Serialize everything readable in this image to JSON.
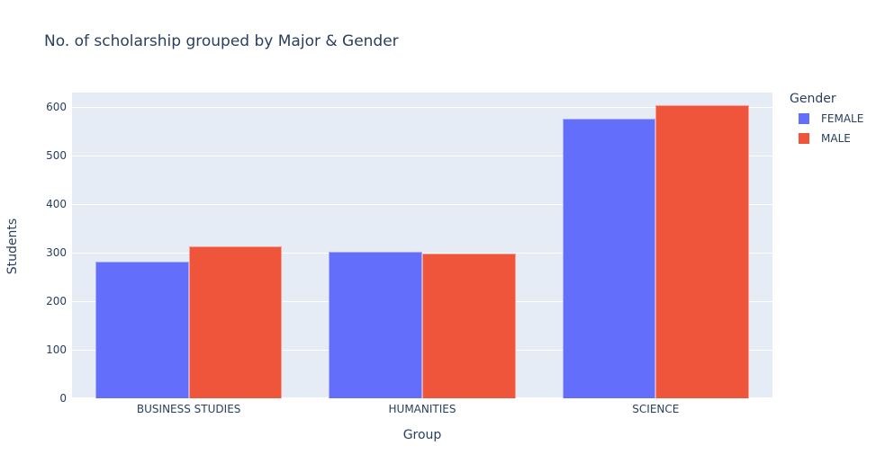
{
  "chart_data": {
    "type": "bar",
    "title": "No. of scholarship grouped by Major & Gender",
    "xlabel": "Group",
    "ylabel": "Students",
    "legend_title": "Gender",
    "categories": [
      "BUSINESS STUDIES",
      "HUMANITIES",
      "SCIENCE"
    ],
    "series": [
      {
        "name": "FEMALE",
        "color": "#636EFA",
        "values": [
          282,
          302,
          577
        ]
      },
      {
        "name": "MALE",
        "color": "#EF553B",
        "values": [
          313,
          299,
          605
        ]
      }
    ],
    "ylim": [
      0,
      630
    ],
    "yticks": [
      0,
      100,
      200,
      300,
      400,
      500,
      600
    ],
    "grid": true,
    "legend_position": "right",
    "colors": {
      "plot_background": "#E5ECF6",
      "gridline": "#FFFFFF",
      "text": "#2A3F5F",
      "page_background": "#FFFFFF"
    }
  }
}
